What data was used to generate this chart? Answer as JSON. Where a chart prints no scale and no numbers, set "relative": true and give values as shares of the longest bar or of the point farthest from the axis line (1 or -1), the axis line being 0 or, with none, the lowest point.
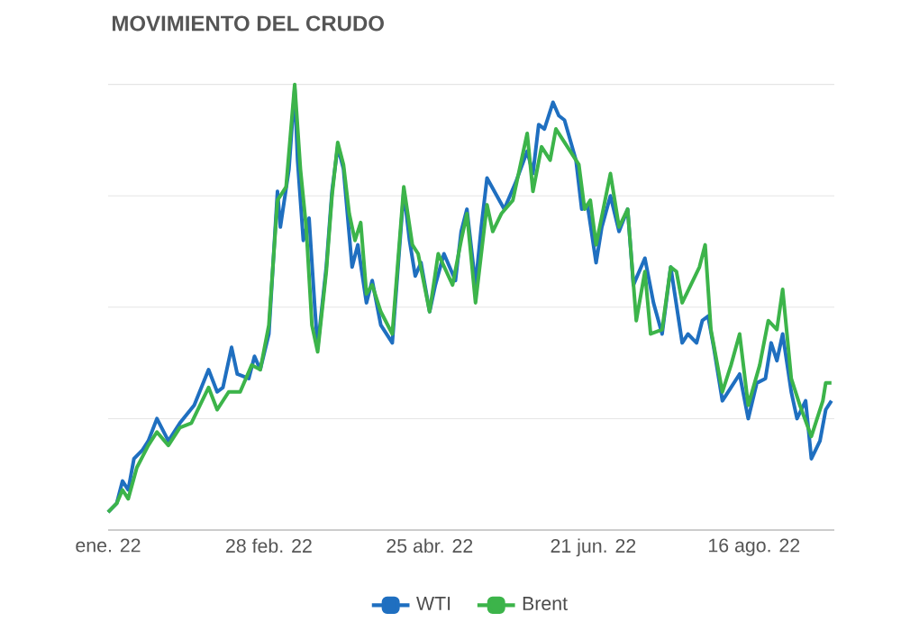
{
  "chart_data": {
    "type": "line",
    "title": "MOVIMIENTO DEL CRUDO",
    "relative": true,
    "grid": "y",
    "legend": "bottom",
    "xlim": [
      "2022-01-03",
      "2022-09-13"
    ],
    "xticks": [
      {
        "value": "2022-01-03",
        "label": "ene. 22"
      },
      {
        "value": "2022-02-28",
        "label": "28 feb. 22"
      },
      {
        "value": "2022-04-25",
        "label": "25 abr. 22"
      },
      {
        "value": "2022-06-21",
        "label": "21 jun. 22"
      },
      {
        "value": "2022-08-16",
        "label": "16 ago. 22"
      }
    ],
    "series": [
      {
        "name": "WTI",
        "color": "#1f6fc0",
        "x": [
          "2022-01-03",
          "2022-01-06",
          "2022-01-08",
          "2022-01-10",
          "2022-01-12",
          "2022-01-15",
          "2022-01-17",
          "2022-01-20",
          "2022-01-24",
          "2022-01-28",
          "2022-02-02",
          "2022-02-07",
          "2022-02-10",
          "2022-02-12",
          "2022-02-15",
          "2022-02-17",
          "2022-02-21",
          "2022-02-23",
          "2022-02-25",
          "2022-02-28",
          "2022-03-03",
          "2022-03-04",
          "2022-03-07",
          "2022-03-09",
          "2022-03-10",
          "2022-03-12",
          "2022-03-14",
          "2022-03-16",
          "2022-03-17",
          "2022-03-20",
          "2022-03-22",
          "2022-03-24",
          "2022-03-26",
          "2022-03-29",
          "2022-03-31",
          "2022-04-03",
          "2022-04-05",
          "2022-04-08",
          "2022-04-12",
          "2022-04-16",
          "2022-04-18",
          "2022-04-20",
          "2022-04-22",
          "2022-04-25",
          "2022-04-27",
          "2022-04-30",
          "2022-05-04",
          "2022-05-06",
          "2022-05-08",
          "2022-05-11",
          "2022-05-13",
          "2022-05-15",
          "2022-05-21",
          "2022-05-25",
          "2022-05-29",
          "2022-05-31",
          "2022-06-02",
          "2022-06-04",
          "2022-06-07",
          "2022-06-09",
          "2022-06-11",
          "2022-06-15",
          "2022-06-17",
          "2022-06-19",
          "2022-06-22",
          "2022-06-24",
          "2022-06-27",
          "2022-06-30",
          "2022-07-03",
          "2022-07-05",
          "2022-07-09",
          "2022-07-12",
          "2022-07-15",
          "2022-07-18",
          "2022-07-22",
          "2022-07-24",
          "2022-07-27",
          "2022-07-29",
          "2022-07-31",
          "2022-08-02",
          "2022-08-05",
          "2022-08-08",
          "2022-08-11",
          "2022-08-14",
          "2022-08-17",
          "2022-08-20",
          "2022-08-22",
          "2022-08-24",
          "2022-08-26",
          "2022-08-29",
          "2022-08-31",
          "2022-09-03",
          "2022-09-05",
          "2022-09-08",
          "2022-09-10",
          "2022-09-12"
        ],
        "values": [
          0.04,
          0.06,
          0.11,
          0.09,
          0.16,
          0.18,
          0.2,
          0.25,
          0.2,
          0.24,
          0.28,
          0.36,
          0.31,
          0.32,
          0.41,
          0.35,
          0.34,
          0.39,
          0.36,
          0.44,
          0.76,
          0.68,
          0.81,
          0.99,
          0.83,
          0.65,
          0.7,
          0.5,
          0.41,
          0.59,
          0.76,
          0.86,
          0.81,
          0.59,
          0.64,
          0.51,
          0.56,
          0.46,
          0.42,
          0.76,
          0.65,
          0.57,
          0.6,
          0.49,
          0.55,
          0.62,
          0.56,
          0.67,
          0.72,
          0.55,
          0.68,
          0.79,
          0.72,
          0.78,
          0.85,
          0.8,
          0.91,
          0.9,
          0.96,
          0.93,
          0.92,
          0.83,
          0.72,
          0.73,
          0.6,
          0.68,
          0.75,
          0.67,
          0.72,
          0.55,
          0.61,
          0.51,
          0.44,
          0.59,
          0.42,
          0.44,
          0.42,
          0.47,
          0.48,
          0.41,
          0.29,
          0.32,
          0.35,
          0.25,
          0.33,
          0.34,
          0.42,
          0.38,
          0.44,
          0.31,
          0.25,
          0.29,
          0.16,
          0.2,
          0.27,
          0.29
        ]
      },
      {
        "name": "Brent",
        "color": "#3cb44a",
        "x": [
          "2022-01-03",
          "2022-01-06",
          "2022-01-08",
          "2022-01-10",
          "2022-01-13",
          "2022-01-17",
          "2022-01-20",
          "2022-01-24",
          "2022-01-28",
          "2022-02-01",
          "2022-02-07",
          "2022-02-10",
          "2022-02-14",
          "2022-02-18",
          "2022-02-22",
          "2022-02-25",
          "2022-02-28",
          "2022-03-03",
          "2022-03-06",
          "2022-03-09",
          "2022-03-11",
          "2022-03-13",
          "2022-03-15",
          "2022-03-17",
          "2022-03-20",
          "2022-03-22",
          "2022-03-24",
          "2022-03-26",
          "2022-03-28",
          "2022-03-30",
          "2022-04-01",
          "2022-04-03",
          "2022-04-05",
          "2022-04-08",
          "2022-04-12",
          "2022-04-16",
          "2022-04-19",
          "2022-04-21",
          "2022-04-25",
          "2022-04-28",
          "2022-05-03",
          "2022-05-06",
          "2022-05-08",
          "2022-05-11",
          "2022-05-15",
          "2022-05-17",
          "2022-05-20",
          "2022-05-24",
          "2022-05-29",
          "2022-05-31",
          "2022-06-03",
          "2022-06-06",
          "2022-06-08",
          "2022-06-11",
          "2022-06-16",
          "2022-06-18",
          "2022-06-20",
          "2022-06-22",
          "2022-06-27",
          "2022-06-30",
          "2022-07-03",
          "2022-07-06",
          "2022-07-09",
          "2022-07-11",
          "2022-07-15",
          "2022-07-18",
          "2022-07-20",
          "2022-07-22",
          "2022-07-25",
          "2022-07-28",
          "2022-07-30",
          "2022-08-01",
          "2022-08-05",
          "2022-08-08",
          "2022-08-11",
          "2022-08-14",
          "2022-08-18",
          "2022-08-21",
          "2022-08-24",
          "2022-08-26",
          "2022-08-29",
          "2022-09-01",
          "2022-09-05",
          "2022-09-09",
          "2022-09-10",
          "2022-09-12"
        ],
        "values": [
          0.04,
          0.06,
          0.09,
          0.07,
          0.14,
          0.19,
          0.22,
          0.19,
          0.23,
          0.24,
          0.32,
          0.27,
          0.31,
          0.31,
          0.37,
          0.36,
          0.46,
          0.74,
          0.77,
          1.0,
          0.81,
          0.68,
          0.46,
          0.4,
          0.58,
          0.75,
          0.87,
          0.82,
          0.71,
          0.65,
          0.69,
          0.53,
          0.55,
          0.49,
          0.44,
          0.77,
          0.64,
          0.62,
          0.49,
          0.62,
          0.55,
          0.65,
          0.71,
          0.51,
          0.73,
          0.67,
          0.71,
          0.74,
          0.89,
          0.76,
          0.86,
          0.83,
          0.9,
          0.87,
          0.82,
          0.72,
          0.74,
          0.64,
          0.8,
          0.68,
          0.72,
          0.47,
          0.58,
          0.44,
          0.45,
          0.59,
          0.58,
          0.51,
          0.55,
          0.59,
          0.64,
          0.45,
          0.31,
          0.37,
          0.44,
          0.28,
          0.37,
          0.47,
          0.45,
          0.54,
          0.34,
          0.28,
          0.21,
          0.29,
          0.33,
          0.33
        ]
      }
    ]
  }
}
